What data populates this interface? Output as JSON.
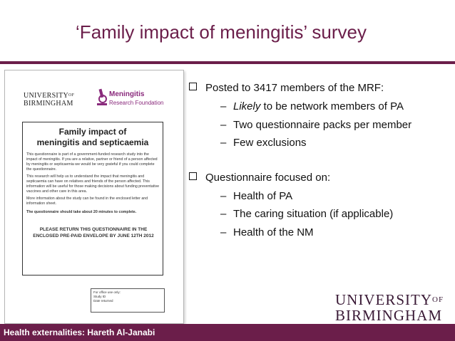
{
  "slide": {
    "title": "‘Family impact of meningitis’ survey"
  },
  "document": {
    "uni_line1": "UNIVERSITY",
    "uni_of": "OF",
    "uni_line2": "BIRMINGHAM",
    "mrf_name": "Meningitis",
    "mrf_sub": "Research Foundation",
    "heading_line1": "Family impact of",
    "heading_line2": "meningitis and septicaemia",
    "para1": "This questionnaire is part of a government-funded research study into the impact of meningitis. If you are a relative, partner or friend of a person affected by meningitis or septicaemia we would be very grateful if you could complete the questionnaire.",
    "para2": "This research will help us to understand the impact that meningitis and septicaemia can have on relatives and friends of the person affected. This information will be useful for those making decisions about funding preventative vaccines and other care in this area.",
    "para3": "More information about the study can be found in the enclosed letter and information sheet.",
    "para4": "The questionnaire should take about 20 minutes to complete.",
    "para5_line1": "PLEASE RETURN THIS QUESTIONNAIRE IN THE",
    "para5_line2": "ENCLOSED PRE-PAID ENVELOPE BY JUNE 12TH 2012",
    "office_line1": "For office use only:",
    "office_line2": "Study ID",
    "office_line3": "Date returned"
  },
  "bullets": [
    {
      "text": "Posted to 3417 members of the MRF:",
      "subs": [
        {
          "prefix": "–",
          "em": "Likely",
          "text": " to be network members of PA"
        },
        {
          "prefix": "–",
          "em": "",
          "text": "Two questionnaire packs per member"
        },
        {
          "prefix": "–",
          "em": "",
          "text": "Few exclusions"
        }
      ]
    },
    {
      "text": "Questionnaire focused on:",
      "subs": [
        {
          "prefix": "–",
          "em": "",
          "text": "Health of PA"
        },
        {
          "prefix": "–",
          "em": "",
          "text": "The caring situation (if applicable)"
        },
        {
          "prefix": "–",
          "em": "",
          "text": "Health of the NM"
        }
      ]
    }
  ],
  "logo": {
    "line1": "UNIVERSITY",
    "of": "OF",
    "line2": "BIRMINGHAM"
  },
  "footer": {
    "text": "Health externalities: Hareth Al-Janabi"
  },
  "colors": {
    "accent": "#6b1e4a",
    "mrf": "#8a2a7c"
  }
}
